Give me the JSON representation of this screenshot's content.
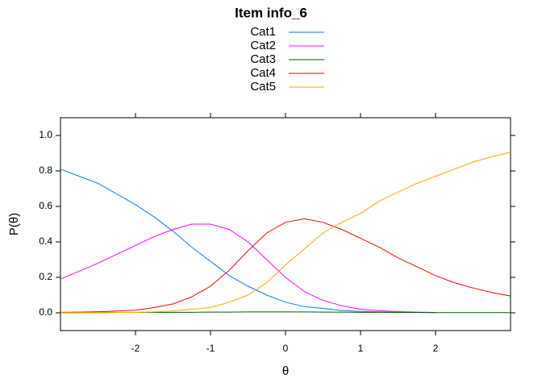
{
  "chart_data": {
    "type": "line",
    "title": "Item info_6",
    "xlabel": "θ",
    "ylabel": "P(θ)",
    "x": [
      -3,
      -2.75,
      -2.5,
      -2.25,
      -2,
      -1.75,
      -1.5,
      -1.25,
      -1,
      -0.75,
      -0.5,
      -0.25,
      0,
      0.25,
      0.5,
      0.75,
      1,
      1.25,
      1.5,
      1.75,
      2,
      2.25,
      2.5,
      2.75,
      3
    ],
    "series": [
      {
        "name": "Cat1",
        "color": "#0080ff",
        "values": [
          0.81,
          0.77,
          0.73,
          0.67,
          0.61,
          0.54,
          0.46,
          0.37,
          0.29,
          0.21,
          0.15,
          0.1,
          0.06,
          0.035,
          0.025,
          0.013,
          0.008,
          0.005,
          0.003,
          0.002,
          0.001,
          null,
          null,
          null,
          null
        ]
      },
      {
        "name": "Cat2",
        "color": "#ff00ff",
        "values": [
          0.19,
          0.235,
          0.28,
          0.33,
          0.38,
          0.43,
          0.47,
          0.5,
          0.5,
          0.47,
          0.4,
          0.3,
          0.2,
          0.12,
          0.07,
          0.04,
          0.02,
          0.012,
          0.007,
          0.004,
          0.002,
          null,
          null,
          null,
          null
        ]
      },
      {
        "name": "Cat3",
        "color": "#006400",
        "values": [
          0.001,
          0.001,
          0.001,
          0.002,
          0.002,
          0.002,
          0.003,
          0.003,
          0.004,
          0.004,
          0.005,
          0.005,
          0.005,
          0.005,
          0.004,
          0.004,
          0.003,
          0.003,
          0.002,
          0.002,
          0.001,
          0.001,
          0.001,
          0.001,
          0.001
        ]
      },
      {
        "name": "Cat4",
        "color": "#ff0000",
        "values": [
          0.003,
          0.004,
          0.006,
          0.01,
          0.015,
          0.03,
          0.05,
          0.09,
          0.15,
          0.24,
          0.35,
          0.45,
          0.51,
          0.53,
          0.51,
          0.47,
          0.42,
          0.37,
          0.31,
          0.26,
          0.21,
          0.17,
          0.14,
          0.115,
          0.095
        ]
      },
      {
        "name": "Cat5",
        "color": "#ffa500",
        "values": [
          0.0005,
          0.001,
          0.001,
          0.002,
          0.002,
          0.005,
          0.01,
          0.02,
          0.03,
          0.06,
          0.1,
          0.17,
          0.27,
          0.36,
          0.45,
          0.51,
          0.56,
          0.63,
          0.68,
          0.73,
          0.77,
          0.81,
          0.85,
          0.88,
          0.905
        ]
      }
    ],
    "xlim": [
      -3,
      3
    ],
    "ylim": [
      -0.1,
      1.1
    ],
    "xticks": [
      -2,
      -1,
      0,
      1,
      2
    ],
    "yticks": [
      {
        "value": 0,
        "label": "0.0"
      },
      0.2,
      0.4,
      0.6,
      0.8,
      {
        "value": 1,
        "label": "1.0"
      }
    ],
    "legend": "top"
  }
}
